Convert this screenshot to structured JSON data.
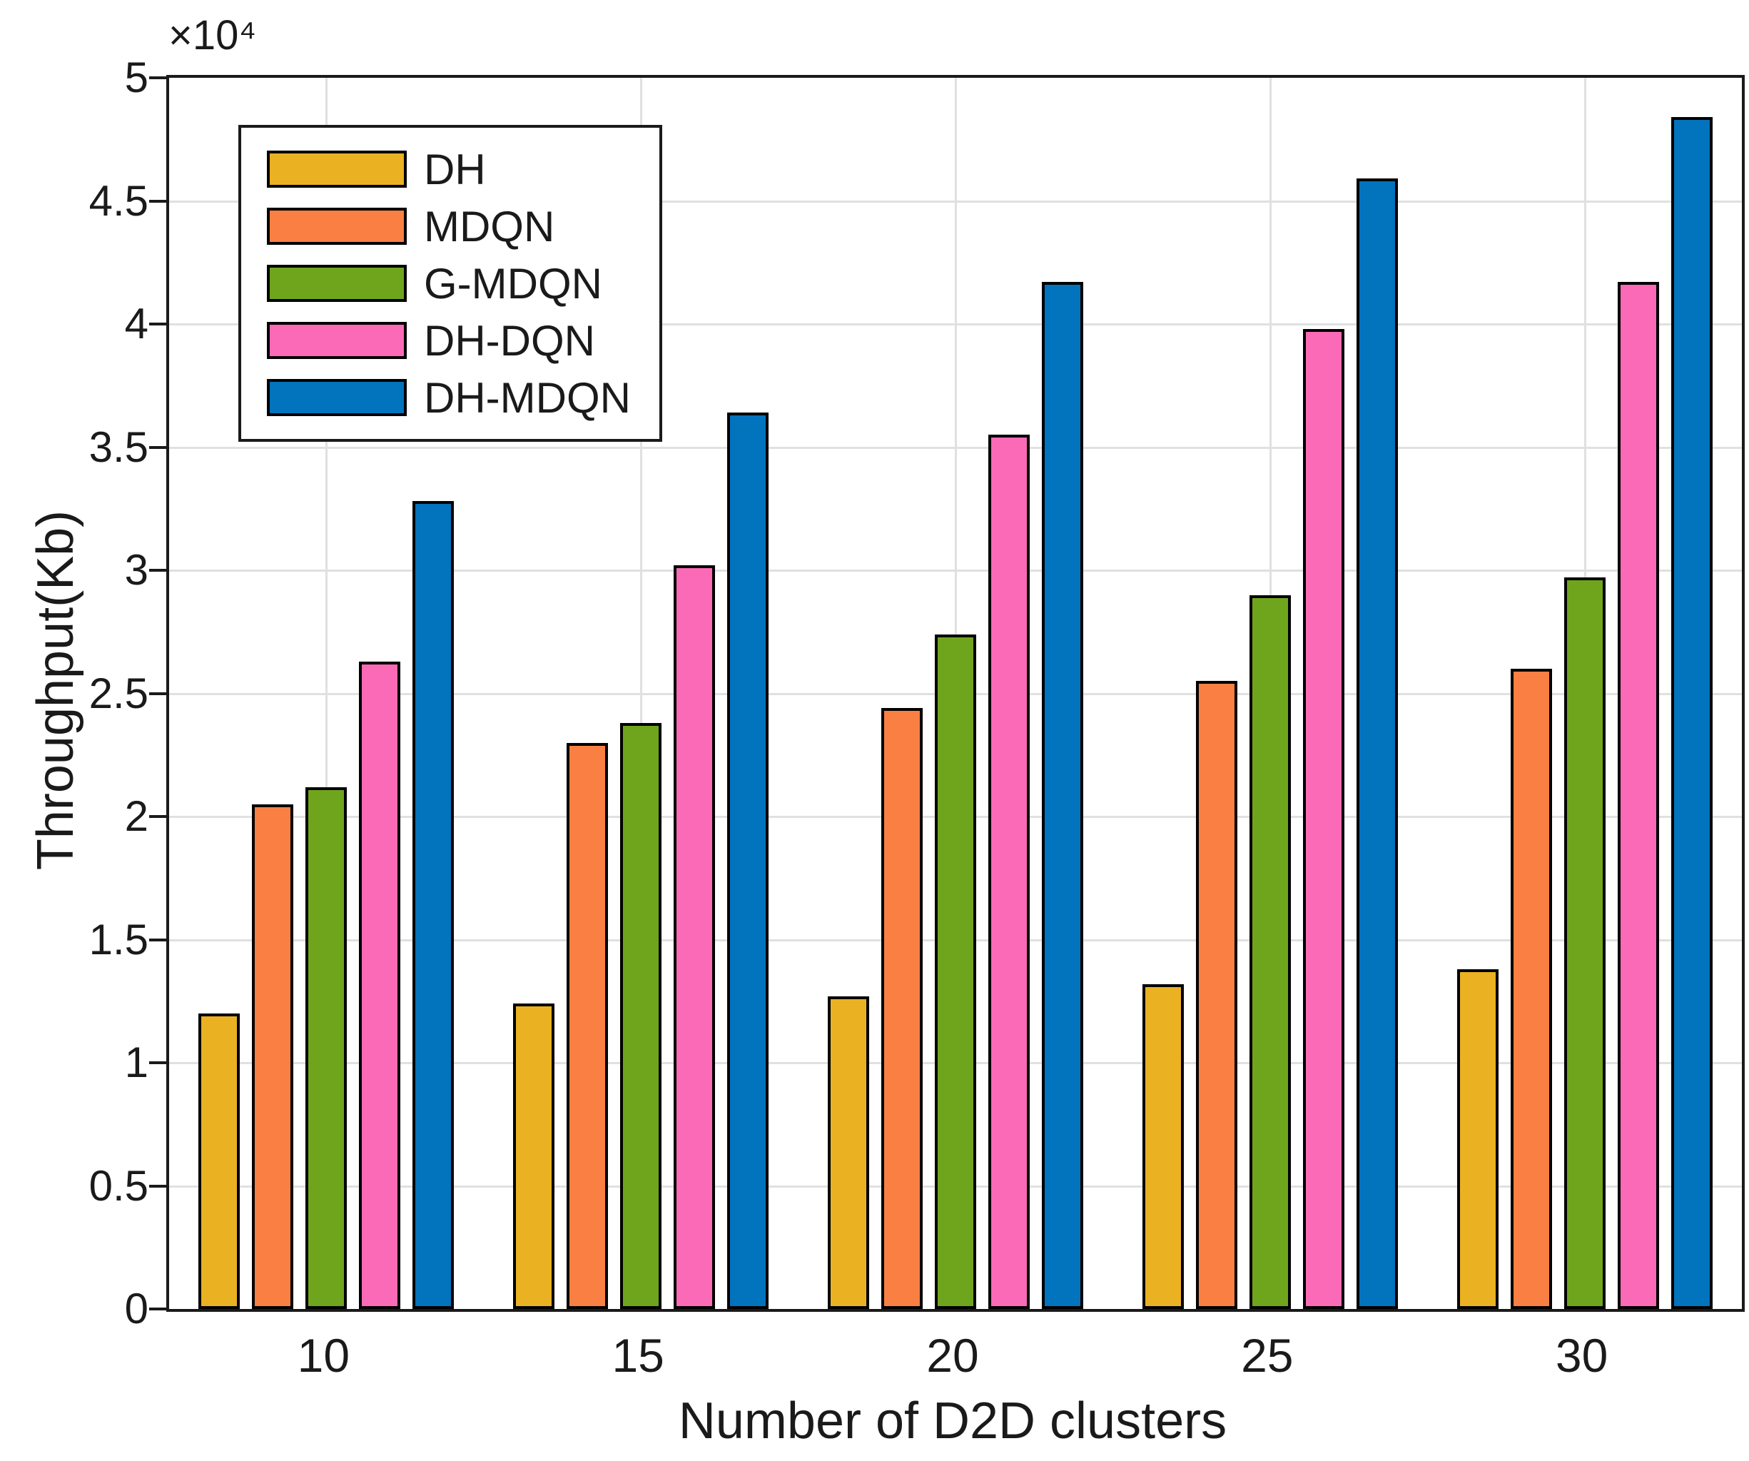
{
  "figure": {
    "multiplier": "×10⁴",
    "xlabel": "Number of D2D clusters",
    "ylabel": "Throughput(Kb)"
  },
  "chart_data": {
    "type": "bar",
    "title": "",
    "xlabel": "Number of D2D clusters",
    "ylabel": "Throughput(Kb)",
    "y_multiplier": "×10⁴",
    "categories": [
      "10",
      "15",
      "20",
      "25",
      "30"
    ],
    "series": [
      {
        "name": "DH",
        "color": "#EAB122",
        "values": [
          12000,
          12400,
          12700,
          13200,
          13800
        ]
      },
      {
        "name": "MDQN",
        "color": "#F98042",
        "values": [
          20500,
          23000,
          24400,
          25500,
          26000
        ]
      },
      {
        "name": "G-MDQN",
        "color": "#6FA51C",
        "values": [
          21200,
          23800,
          27400,
          29000,
          29700
        ]
      },
      {
        "name": "DH-DQN",
        "color": "#FB6AB6",
        "values": [
          26300,
          30200,
          35500,
          39800,
          41700
        ]
      },
      {
        "name": "DH-MDQN",
        "color": "#0273BD",
        "values": [
          32800,
          36400,
          41700,
          45900,
          48400
        ]
      }
    ],
    "ylim": [
      0,
      50000
    ],
    "yticks": [
      0,
      5000,
      10000,
      15000,
      20000,
      25000,
      30000,
      35000,
      40000,
      45000,
      50000
    ],
    "ytick_labels": [
      "0",
      "0.5",
      "1",
      "1.5",
      "2",
      "2.5",
      "3",
      "3.5",
      "4",
      "4.5",
      "5"
    ],
    "grid": true,
    "legend_position": "top-left-inside"
  },
  "style_colors": {
    "grid": "#E0E0E0",
    "axis": "#1A1A1A",
    "bar_edge": "#000000",
    "background": "#FFFFFF"
  }
}
